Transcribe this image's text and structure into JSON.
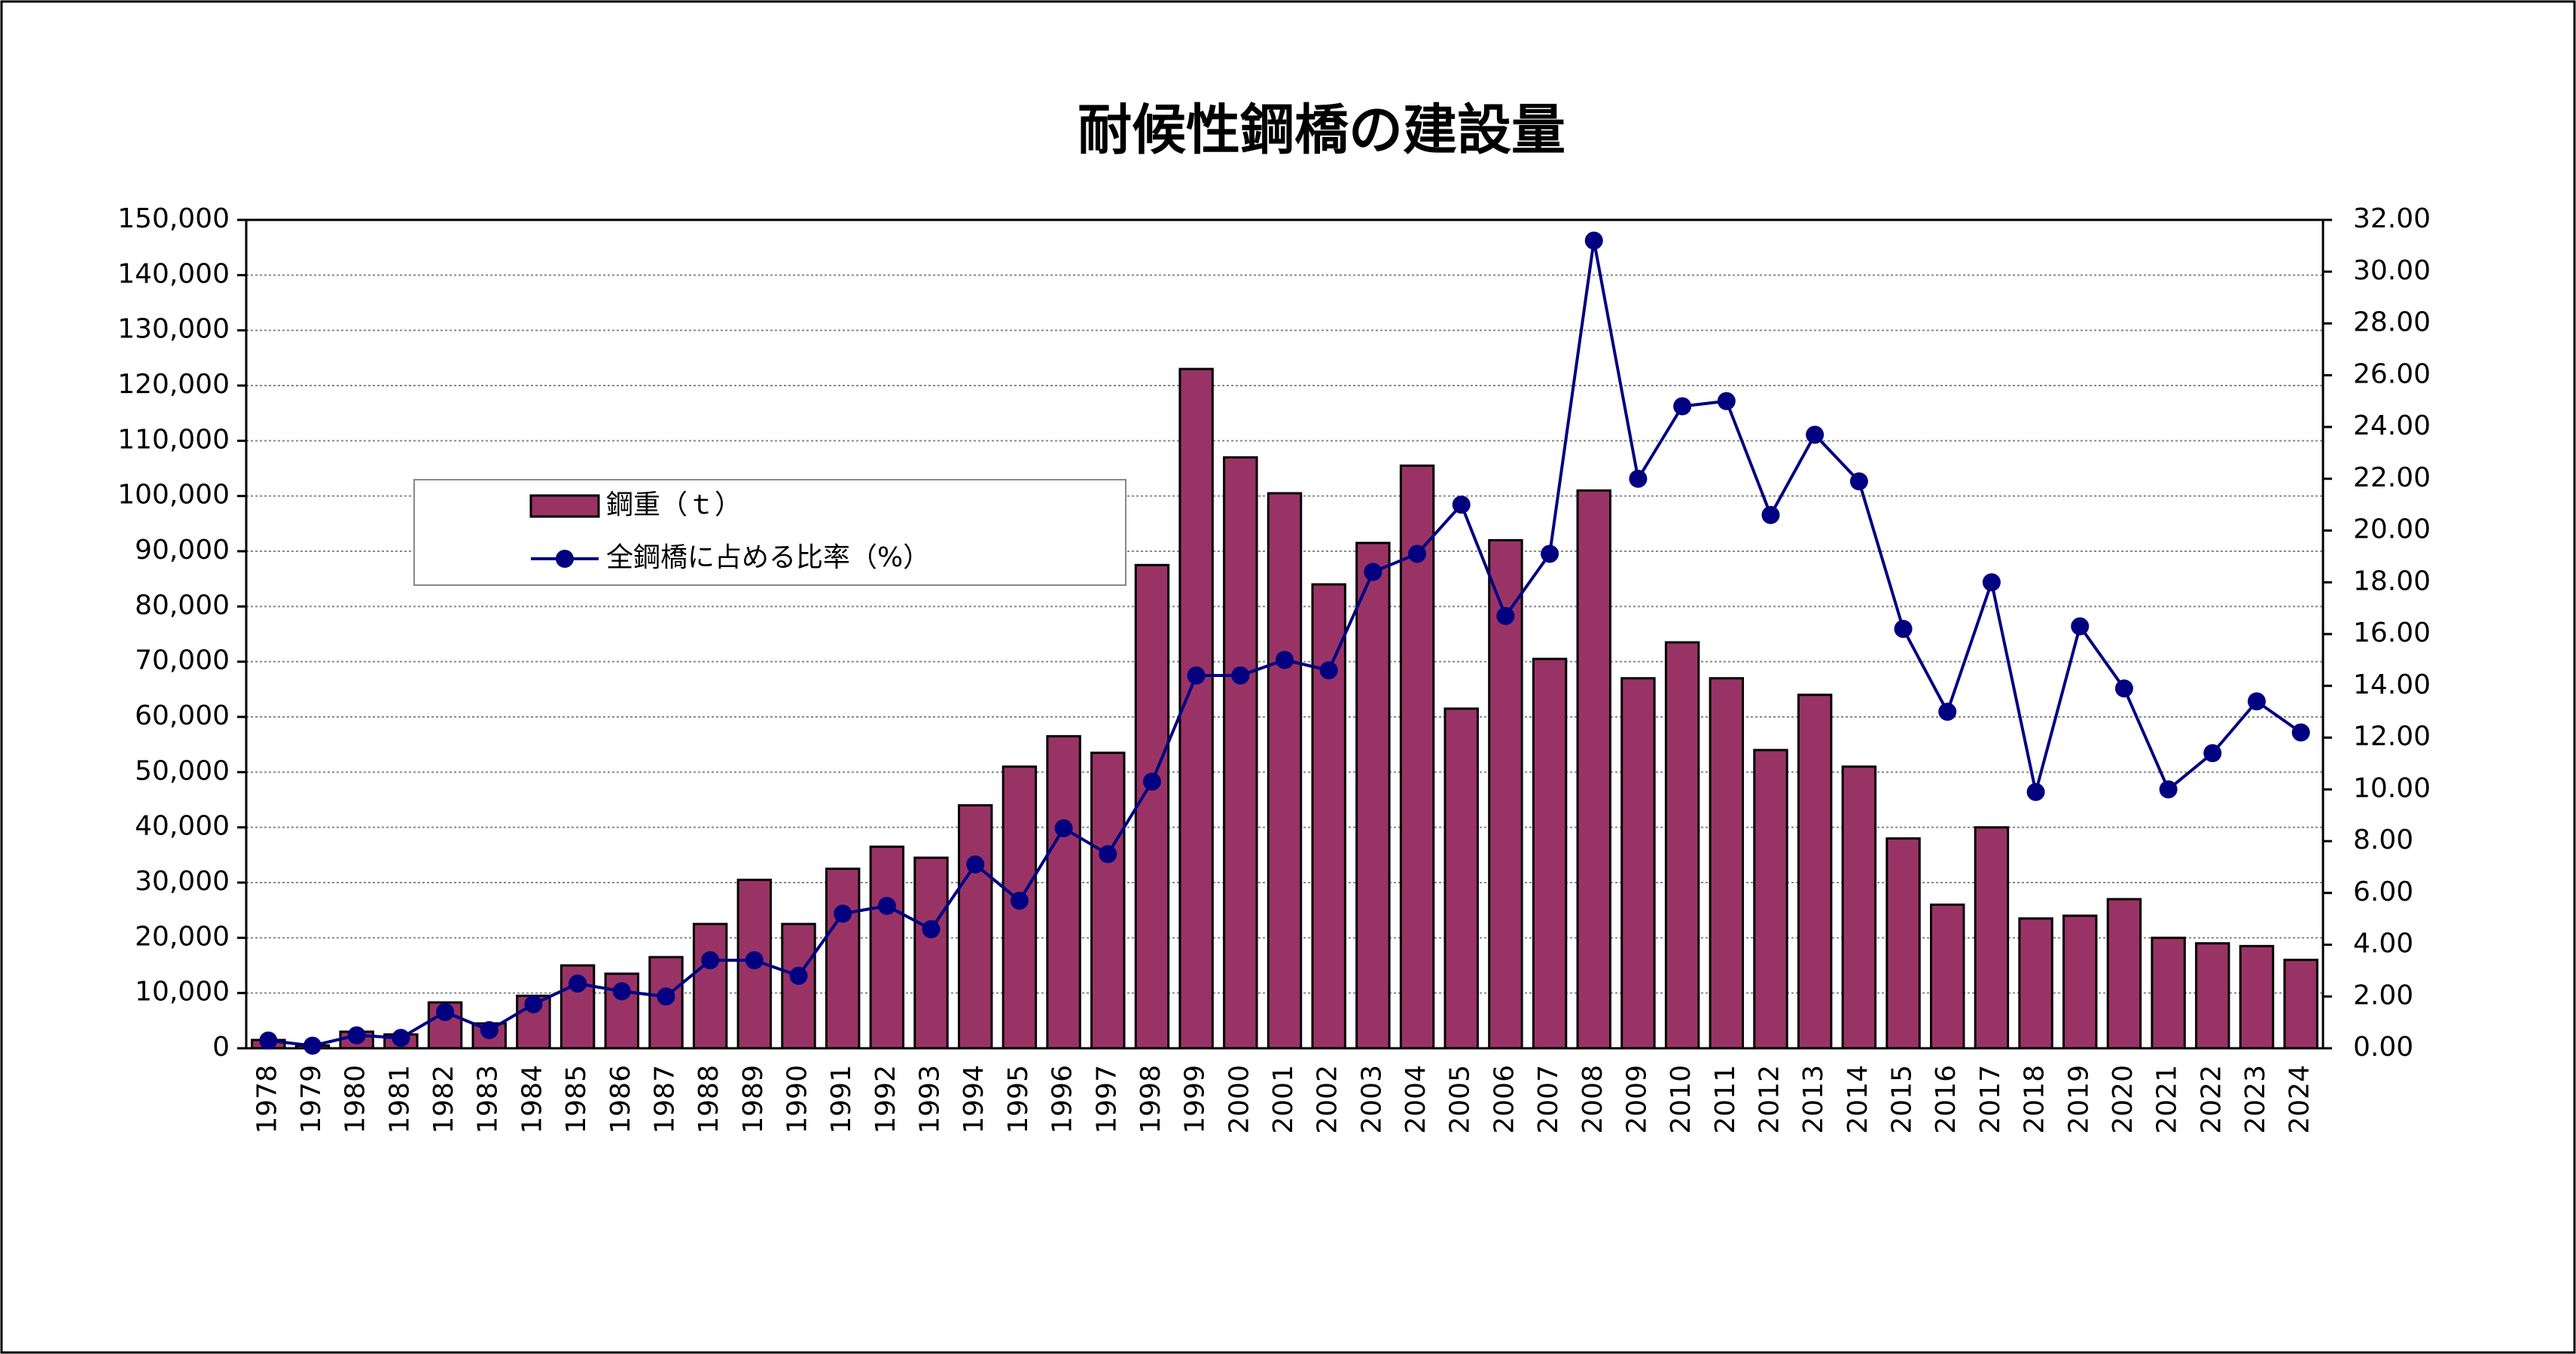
{
  "chart_data": {
    "type": "bar-line",
    "title": "耐候性鋼橋の建設量",
    "categories": [
      "1978",
      "1979",
      "1980",
      "1981",
      "1982",
      "1983",
      "1984",
      "1985",
      "1986",
      "1987",
      "1988",
      "1989",
      "1990",
      "1991",
      "1992",
      "1993",
      "1994",
      "1995",
      "1996",
      "1997",
      "1998",
      "1999",
      "2000",
      "2001",
      "2002",
      "2003",
      "2004",
      "2005",
      "2006",
      "2007",
      "2008",
      "2009",
      "2010",
      "2011",
      "2012",
      "2013",
      "2014",
      "2015",
      "2016",
      "2017",
      "2018",
      "2019",
      "2020",
      "2021",
      "2022",
      "2023",
      "2024"
    ],
    "series": [
      {
        "name": "鋼重（ｔ）",
        "type": "bar",
        "color": "#993366",
        "values": [
          1500,
          500,
          3000,
          2500,
          8300,
          4500,
          9500,
          15000,
          13500,
          16500,
          22500,
          30500,
          22500,
          32500,
          36500,
          34500,
          44000,
          51000,
          56500,
          53500,
          87500,
          123000,
          107000,
          100500,
          84000,
          91500,
          105500,
          61500,
          92000,
          70500,
          101000,
          67000,
          73500,
          67000,
          54000,
          64000,
          51000,
          38000,
          26000,
          40000,
          23500,
          24000,
          27000,
          20000,
          19000,
          18500,
          16000
        ]
      },
      {
        "name": "全鋼橋に占める比率（%）",
        "type": "line",
        "axis": "y2",
        "color": "#000080",
        "values": [
          0.3,
          0.1,
          0.5,
          0.4,
          1.4,
          0.7,
          1.7,
          2.5,
          2.2,
          2.0,
          3.4,
          3.4,
          2.8,
          5.2,
          5.5,
          4.6,
          7.1,
          5.7,
          8.5,
          7.5,
          10.3,
          14.4,
          14.4,
          15.0,
          14.6,
          18.4,
          19.1,
          21.0,
          16.7,
          19.1,
          31.2,
          22.0,
          24.8,
          25.0,
          20.6,
          23.7,
          21.9,
          16.2,
          13.0,
          18.0,
          9.9,
          16.3,
          13.9,
          10.0,
          11.4,
          13.4,
          12.2
        ]
      }
    ],
    "ylim": [
      0,
      150000
    ],
    "yticks": [
      0,
      {
        "value": 10000,
        "label": "10,000"
      },
      {
        "value": 20000,
        "label": "20,000"
      },
      {
        "value": 30000,
        "label": "30,000"
      },
      {
        "value": 40000,
        "label": "40,000"
      },
      {
        "value": 50000,
        "label": "50,000"
      },
      {
        "value": 60000,
        "label": "60,000"
      },
      {
        "value": 70000,
        "label": "70,000"
      },
      {
        "value": 80000,
        "label": "80,000"
      },
      {
        "value": 90000,
        "label": "90,000"
      },
      {
        "value": 100000,
        "label": "100,000"
      },
      {
        "value": 110000,
        "label": "110,000"
      },
      {
        "value": 120000,
        "label": "120,000"
      },
      {
        "value": 130000,
        "label": "130,000"
      },
      {
        "value": 140000,
        "label": "140,000"
      },
      {
        "value": 150000,
        "label": "150,000"
      }
    ],
    "y2lim": [
      0,
      32
    ],
    "y2ticks": [
      {
        "value": 0,
        "label": "0.00"
      },
      {
        "value": 2,
        "label": "2.00"
      },
      {
        "value": 4,
        "label": "4.00"
      },
      {
        "value": 6,
        "label": "6.00"
      },
      {
        "value": 8,
        "label": "8.00"
      },
      {
        "value": 10,
        "label": "10.00"
      },
      {
        "value": 12,
        "label": "12.00"
      },
      {
        "value": 14,
        "label": "14.00"
      },
      {
        "value": 16,
        "label": "16.00"
      },
      {
        "value": 18,
        "label": "18.00"
      },
      {
        "value": 20,
        "label": "20.00"
      },
      {
        "value": 22,
        "label": "22.00"
      },
      {
        "value": 24,
        "label": "24.00"
      },
      {
        "value": 26,
        "label": "26.00"
      },
      {
        "value": 28,
        "label": "28.00"
      },
      {
        "value": 30,
        "label": "30.00"
      },
      {
        "value": 32,
        "label": "32.00"
      }
    ],
    "grid": true
  }
}
